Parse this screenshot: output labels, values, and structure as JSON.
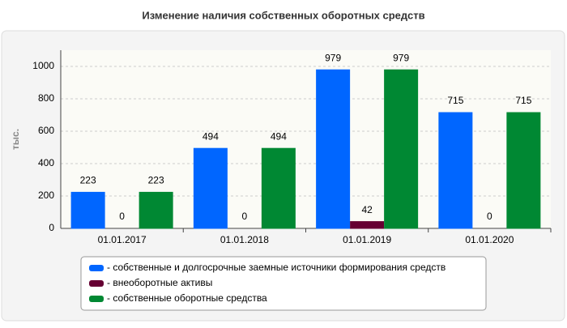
{
  "chart_data": {
    "type": "bar",
    "title": "Изменение наличия собственных оборотных средств",
    "y_label": "тыс.",
    "categories": [
      "01.01.2017",
      "01.01.2018",
      "01.01.2019",
      "01.01.2020"
    ],
    "series": [
      {
        "name": "- собственные и долгосрочные заемные источники формирования средств",
        "color": "#0066ff",
        "values": [
          223,
          494,
          979,
          715
        ]
      },
      {
        "name": "- внеоборотные активы",
        "color": "#660033",
        "values": [
          0,
          0,
          42,
          0
        ]
      },
      {
        "name": "- собственные оборотные средства",
        "color": "#008833",
        "values": [
          223,
          494,
          979,
          715
        ]
      }
    ],
    "ylim": [
      0,
      1100
    ],
    "yticks": [
      0,
      200,
      400,
      600,
      800,
      1000
    ],
    "grid": true,
    "legend": "bottom"
  }
}
